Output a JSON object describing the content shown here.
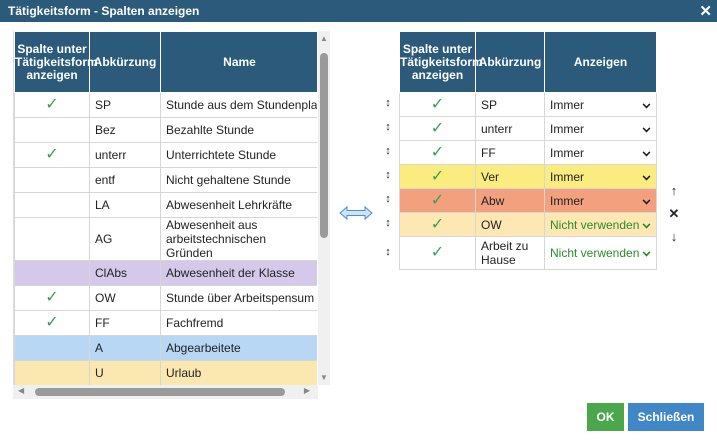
{
  "dialog": {
    "title": "Tätigkeitsform - Spalten anzeigen"
  },
  "left_table": {
    "headers": [
      "Spalte unter Tätigkeitsform anzeigen",
      "Abkürzung",
      "Name"
    ],
    "rows": [
      {
        "checked": true,
        "abbr": "SP",
        "name": "Stunde aus dem Stundenplan",
        "bg": ""
      },
      {
        "checked": false,
        "abbr": "Bez",
        "name": "Bezahlte Stunde",
        "bg": ""
      },
      {
        "checked": true,
        "abbr": "unterr",
        "name": "Unterrichtete Stunde",
        "bg": ""
      },
      {
        "checked": false,
        "abbr": "entf",
        "name": "Nicht gehaltene Stunde",
        "bg": ""
      },
      {
        "checked": false,
        "abbr": "LA",
        "name": "Abwesenheit Lehrkräfte",
        "bg": ""
      },
      {
        "checked": false,
        "abbr": "AG",
        "name": "Abwesenheit aus arbeitstechnischen Gründen",
        "bg": "",
        "tall": true
      },
      {
        "checked": false,
        "abbr": "ClAbs",
        "name": "Abwesenheit der Klasse",
        "bg": "#d4c9ea"
      },
      {
        "checked": true,
        "abbr": "OW",
        "name": "Stunde über Arbeitspensum",
        "bg": ""
      },
      {
        "checked": true,
        "abbr": "FF",
        "name": "Fachfremd",
        "bg": ""
      },
      {
        "checked": false,
        "abbr": "A",
        "name": "Abgearbeitete",
        "bg": "#b8d7f5"
      },
      {
        "checked": false,
        "abbr": "U",
        "name": "Urlaub",
        "bg": "#fbe8b0"
      },
      {
        "checked": false,
        "abbr": "",
        "name": "",
        "bg": "#b8d7f5"
      }
    ]
  },
  "right_table": {
    "headers": [
      "Spalte unter Tätigkeitsform anzeigen",
      "Abkürzung",
      "Anzeigen"
    ],
    "rows": [
      {
        "abbr": "SP",
        "show": "Immer",
        "bg": "",
        "show_color": "#222"
      },
      {
        "abbr": "unterr",
        "show": "Immer",
        "bg": "",
        "show_color": "#222"
      },
      {
        "abbr": "FF",
        "show": "Immer",
        "bg": "",
        "show_color": "#222"
      },
      {
        "abbr": "Ver",
        "show": "Immer",
        "bg": "#fbec7f",
        "show_color": "#222"
      },
      {
        "abbr": "Abw",
        "show": "Immer",
        "bg": "#f3a07f",
        "show_color": "#222"
      },
      {
        "abbr": "OW",
        "show": "Nicht verwenden",
        "bg": "#fde8b4",
        "show_color": "#2a8a2a"
      },
      {
        "abbr": "Arbeit zu Hause",
        "show": "Nicht verwenden",
        "bg": "",
        "show_color": "#2a8a2a",
        "tall": true
      }
    ]
  },
  "side_controls": {
    "up": "↑",
    "remove": "✕",
    "down": "↓"
  },
  "buttons": {
    "ok": "OK",
    "close": "Schließen"
  },
  "colors": {
    "header": "#2b5a7a",
    "check": "#3f9a5a",
    "ok": "#4aa84a",
    "close": "#3f87c6"
  }
}
